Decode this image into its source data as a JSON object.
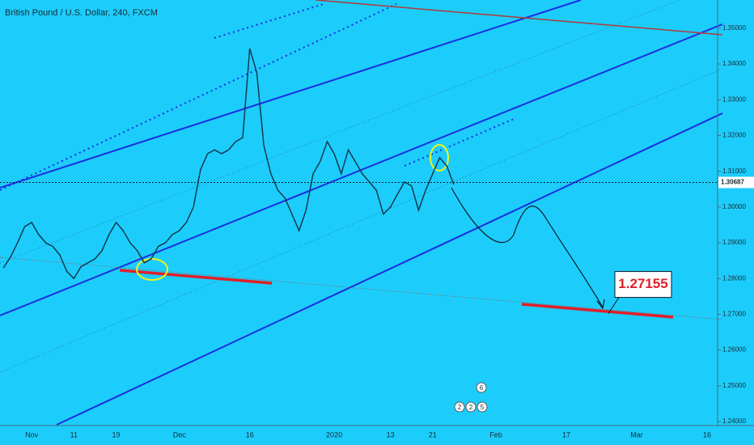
{
  "chart_data": {
    "type": "line",
    "title": "British Pound / U.S. Dollar, 240, FXCM",
    "categories": [
      null,
      null,
      null,
      null,
      "Nov",
      null,
      null,
      null,
      null,
      null,
      "11",
      null,
      null,
      null,
      null,
      null,
      "19",
      null,
      null,
      null,
      null,
      null,
      null,
      null,
      null,
      "Dec",
      null,
      null,
      null,
      null,
      null,
      null,
      null,
      null,
      null,
      "16",
      null,
      null,
      null,
      null,
      null,
      null,
      null,
      null,
      null,
      null,
      null,
      "2020",
      null,
      null,
      null,
      null,
      null,
      null,
      null,
      "13",
      null,
      null,
      null,
      null,
      null,
      "21",
      null,
      null,
      null,
      null,
      null,
      null,
      null,
      null,
      "Feb",
      null,
      null,
      null,
      null,
      null,
      null,
      null,
      null,
      null,
      "17",
      null,
      null,
      null,
      null,
      null,
      null,
      null,
      null,
      null,
      "Mar",
      null,
      null,
      null,
      null,
      null,
      null,
      null,
      null,
      null,
      "16",
      null
    ],
    "values": [
      1.283,
      1.286,
      1.29,
      1.2945,
      1.2957,
      1.2923,
      1.29,
      1.289,
      1.2866,
      1.282,
      1.28,
      1.2833,
      1.2844,
      1.2855,
      1.2878,
      1.2923,
      1.2957,
      1.2934,
      1.29,
      1.2878,
      1.2844,
      1.2855,
      1.289,
      1.29,
      1.2923,
      1.2934,
      1.2957,
      1.3,
      1.3104,
      1.3149,
      1.316,
      1.3149,
      1.316,
      1.3183,
      1.3194,
      1.3443,
      1.3376,
      1.3172,
      1.3093,
      1.3047,
      1.3025,
      1.298,
      1.2934,
      1.2991,
      1.3093,
      1.3127,
      1.3183,
      1.3149,
      1.3093,
      1.316,
      1.3127,
      1.3093,
      1.307,
      1.3047,
      1.298,
      1.3,
      1.3036,
      1.307,
      1.3059,
      1.2991,
      1.3047,
      1.3093,
      1.3138,
      1.3115,
      1.3063,
      null,
      null,
      null,
      null,
      null,
      null,
      null,
      null,
      null,
      null,
      null,
      null,
      null,
      null,
      null,
      null,
      null,
      null,
      null,
      null,
      null,
      null,
      null,
      null,
      null,
      null,
      null,
      null,
      null,
      null,
      null,
      null,
      null,
      null,
      null,
      null,
      null
    ],
    "color": "#123a4c",
    "ylim": [
      1.24,
      1.3579
    ],
    "yticks": [
      {
        "value": 1.24,
        "label": "1.24000"
      },
      {
        "value": 1.25,
        "label": "1.25000"
      },
      {
        "value": 1.26,
        "label": "1.26000"
      },
      {
        "value": 1.27,
        "label": "1.27000"
      },
      {
        "value": 1.28,
        "label": "1.28000"
      },
      {
        "value": 1.29,
        "label": "1.29000"
      },
      {
        "value": 1.3,
        "label": "1.30000"
      },
      {
        "value": 1.31,
        "label": "1.31000"
      },
      {
        "value": 1.32,
        "label": "1.32000"
      },
      {
        "value": 1.33,
        "label": "1.33000"
      },
      {
        "value": 1.34,
        "label": "1.34000"
      },
      {
        "value": 1.35,
        "label": "1.35000"
      }
    ],
    "last_price": {
      "value": 1.30687,
      "label": "1.30687"
    },
    "target": {
      "value": 1.27155,
      "label": "1.27155"
    },
    "events": [
      "6",
      "2",
      "2",
      "5"
    ]
  }
}
